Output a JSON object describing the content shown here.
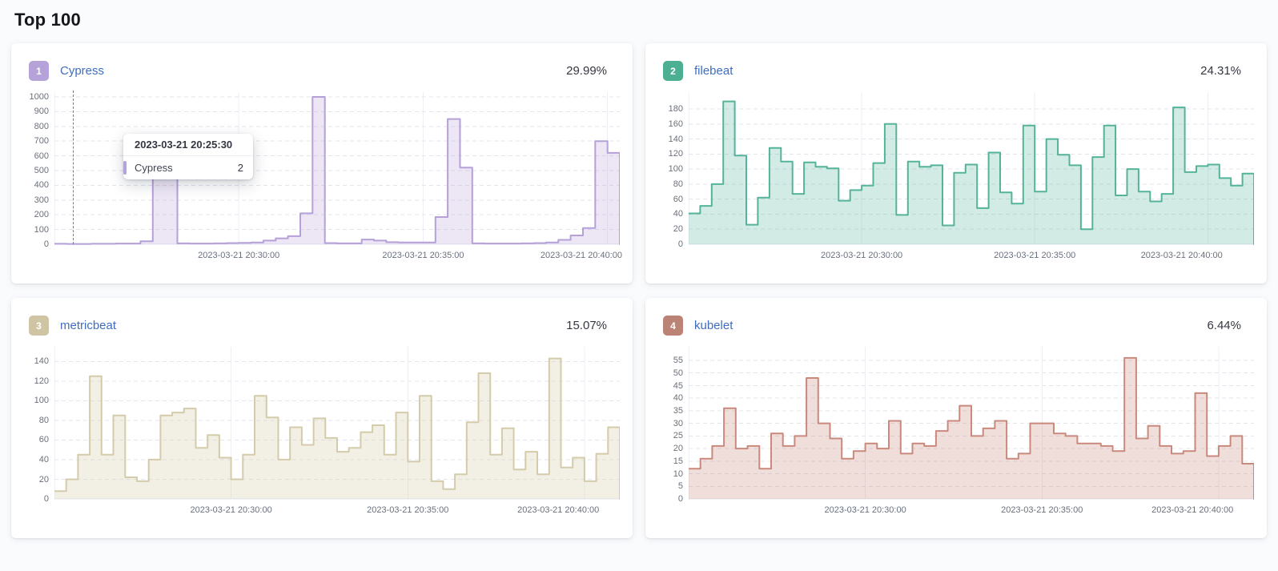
{
  "page": {
    "title": "Top 100"
  },
  "axis": {
    "x_tick_labels": [
      "2023-03-21 20:30:00",
      "2023-03-21 20:35:00",
      "2023-03-21 20:40:00"
    ]
  },
  "tooltip": {
    "header": "2023-03-21 20:25:30",
    "series": "Cypress",
    "value": "2",
    "marker_color": "#b5a2d8"
  },
  "panels": [
    {
      "rank": "1",
      "name": "Cypress",
      "percent": "29.99%",
      "badge_color": "#b5a2d8"
    },
    {
      "rank": "2",
      "name": "filebeat",
      "percent": "24.31%",
      "badge_color": "#4daf92"
    },
    {
      "rank": "3",
      "name": "metricbeat",
      "percent": "15.07%",
      "badge_color": "#cfc5a4"
    },
    {
      "rank": "4",
      "name": "kubelet",
      "percent": "6.44%",
      "badge_color": "#bb8375"
    }
  ],
  "chart_data": [
    {
      "type": "area",
      "step": true,
      "series_name": "Cypress",
      "x_start": "2023-03-21 20:25:00",
      "x_interval_seconds": 20,
      "x_tick_labels": [
        "2023-03-21 20:30:00",
        "2023-03-21 20:35:00",
        "2023-03-21 20:40:00"
      ],
      "x_tick_indices": [
        15,
        30,
        45
      ],
      "y_ticks": [
        0,
        100,
        200,
        300,
        400,
        500,
        600,
        700,
        800,
        900,
        1000
      ],
      "ylim": [
        0,
        1000
      ],
      "y_max_display": 1000,
      "grid": true,
      "line_color": "#b5a0d8",
      "fill_color": "rgba(181,160,216,0.26)",
      "hover_fraction": 0.0326,
      "values": [
        3,
        2,
        2,
        3,
        3,
        5,
        5,
        20,
        500,
        480,
        6,
        5,
        5,
        6,
        8,
        10,
        12,
        25,
        40,
        55,
        210,
        1000,
        8,
        6,
        6,
        32,
        25,
        14,
        12,
        12,
        12,
        185,
        850,
        520,
        6,
        5,
        5,
        5,
        6,
        8,
        12,
        30,
        60,
        110,
        700,
        620
      ]
    },
    {
      "type": "area",
      "step": true,
      "series_name": "filebeat",
      "x_start": "2023-03-21 20:25:00",
      "x_interval_seconds": 20,
      "x_tick_labels": [
        "2023-03-21 20:30:00",
        "2023-03-21 20:35:00",
        "2023-03-21 20:40:00"
      ],
      "x_tick_indices": [
        15,
        30,
        45
      ],
      "y_ticks": [
        0,
        20,
        40,
        60,
        80,
        100,
        120,
        140,
        160,
        180
      ],
      "ylim": [
        0,
        190
      ],
      "y_max_display": 196,
      "grid": true,
      "line_color": "#54b399",
      "fill_color": "rgba(84,179,153,0.26)",
      "values": [
        41,
        51,
        80,
        190,
        118,
        26,
        62,
        128,
        110,
        67,
        109,
        103,
        101,
        58,
        72,
        78,
        108,
        160,
        39,
        110,
        103,
        105,
        25,
        95,
        106,
        48,
        122,
        69,
        54,
        158,
        70,
        140,
        119,
        105,
        20,
        116,
        158,
        65,
        100,
        70,
        57,
        67,
        182,
        96,
        104,
        106,
        88,
        78,
        94
      ]
    },
    {
      "type": "area",
      "step": true,
      "series_name": "metricbeat",
      "x_start": "2023-03-21 20:25:00",
      "x_interval_seconds": 20,
      "x_tick_labels": [
        "2023-03-21 20:30:00",
        "2023-03-21 20:35:00",
        "2023-03-21 20:40:00"
      ],
      "x_tick_indices": [
        15,
        30,
        45
      ],
      "y_ticks": [
        0,
        20,
        40,
        60,
        80,
        100,
        120,
        140
      ],
      "ylim": [
        0,
        143
      ],
      "y_max_display": 150,
      "grid": true,
      "line_color": "#d4cbaa",
      "fill_color": "rgba(212,203,170,0.30)",
      "values": [
        8,
        20,
        45,
        125,
        45,
        85,
        22,
        18,
        40,
        85,
        88,
        92,
        52,
        65,
        42,
        20,
        45,
        105,
        83,
        40,
        73,
        55,
        82,
        62,
        48,
        52,
        68,
        75,
        45,
        88,
        38,
        105,
        18,
        10,
        25,
        78,
        128,
        45,
        72,
        30,
        48,
        25,
        143,
        32,
        42,
        18,
        46,
        73
      ]
    },
    {
      "type": "area",
      "step": true,
      "series_name": "kubelet",
      "x_start": "2023-03-21 20:25:00",
      "x_interval_seconds": 20,
      "x_tick_labels": [
        "2023-03-21 20:30:00",
        "2023-03-21 20:35:00",
        "2023-03-21 20:40:00"
      ],
      "x_tick_indices": [
        15,
        30,
        45
      ],
      "y_ticks": [
        0,
        5,
        10,
        15,
        20,
        25,
        30,
        35,
        40,
        45,
        50,
        55
      ],
      "ylim": [
        0,
        56
      ],
      "y_max_display": 58.5,
      "grid": true,
      "line_color": "#c9897d",
      "fill_color": "rgba(201,137,125,0.28)",
      "values": [
        12,
        16,
        21,
        36,
        20,
        21,
        12,
        26,
        21,
        25,
        48,
        30,
        24,
        16,
        19,
        22,
        20,
        31,
        18,
        22,
        21,
        27,
        31,
        37,
        25,
        28,
        31,
        16,
        18,
        30,
        30,
        26,
        25,
        22,
        22,
        21,
        19,
        56,
        24,
        29,
        21,
        18,
        19,
        42,
        17,
        21,
        25,
        14
      ]
    }
  ]
}
